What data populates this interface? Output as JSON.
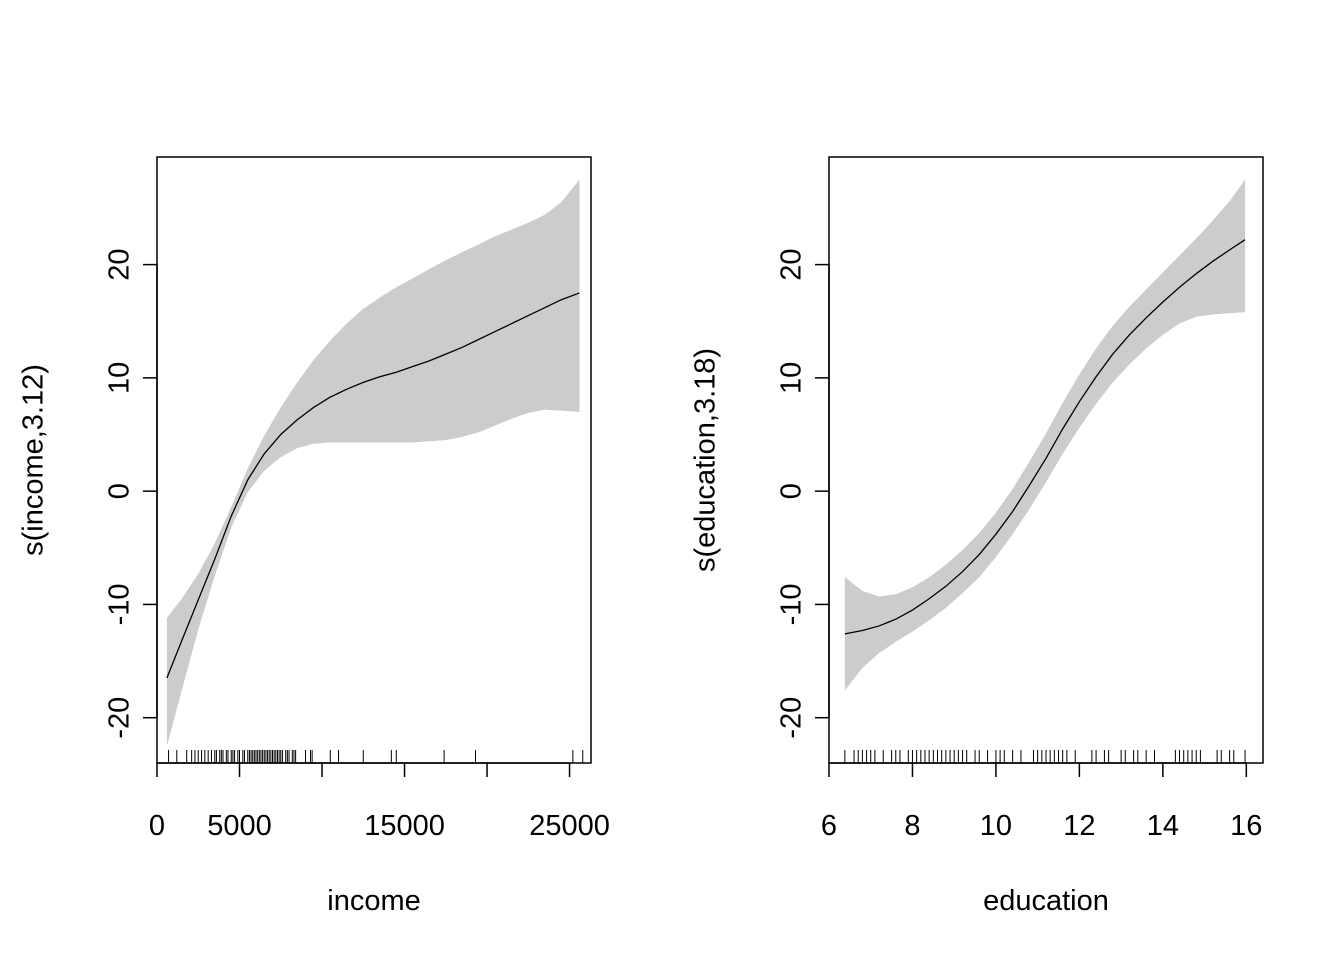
{
  "chart_data": [
    {
      "type": "line",
      "xlabel": "income",
      "ylabel": "s(income,3.12)",
      "xlim": [
        0,
        26300
      ],
      "ylim": [
        -24,
        29.5
      ],
      "xticks": [
        0,
        5000,
        10000,
        15000,
        20000,
        25000
      ],
      "xtick_labels": [
        "0",
        "5000",
        "",
        "15000",
        "",
        "25000"
      ],
      "yticks": [
        -20,
        -10,
        0,
        10,
        20
      ],
      "ytick_labels": [
        "-20",
        "-10",
        "0",
        "10",
        "20"
      ],
      "band_color": "#cccccc",
      "line_color": "#000000",
      "fit": {
        "x": [
          600,
          1500,
          2500,
          3500,
          4500,
          5500,
          6500,
          7500,
          8500,
          9500,
          10500,
          11500,
          12500,
          13500,
          14500,
          15500,
          16500,
          17500,
          18500,
          19500,
          20500,
          21500,
          22500,
          23500,
          24500,
          25600
        ],
        "y": [
          -16.5,
          -13.2,
          -9.6,
          -6.0,
          -2.2,
          1.0,
          3.3,
          5.0,
          6.3,
          7.4,
          8.3,
          9.0,
          9.6,
          10.1,
          10.5,
          11.0,
          11.5,
          12.1,
          12.7,
          13.4,
          14.1,
          14.8,
          15.5,
          16.2,
          16.9,
          17.5
        ],
        "upper": [
          -11.2,
          -9.5,
          -7.3,
          -4.6,
          -1.4,
          2.0,
          4.9,
          7.4,
          9.6,
          11.6,
          13.3,
          14.8,
          16.1,
          17.1,
          18.0,
          18.8,
          19.6,
          20.4,
          21.1,
          21.8,
          22.5,
          23.1,
          23.7,
          24.4,
          25.5,
          27.5
        ],
        "lower": [
          -22.5,
          -17.6,
          -12.2,
          -7.5,
          -3.2,
          -0.1,
          1.8,
          3.0,
          3.8,
          4.2,
          4.3,
          4.3,
          4.3,
          4.3,
          4.3,
          4.3,
          4.4,
          4.5,
          4.8,
          5.2,
          5.8,
          6.4,
          6.9,
          7.2,
          7.1,
          7.0
        ]
      },
      "rug": [
        700,
        1200,
        1800,
        2100,
        2300,
        2500,
        2700,
        2900,
        3100,
        3300,
        3500,
        3600,
        3800,
        3900,
        4000,
        4200,
        4300,
        4500,
        4600,
        4700,
        4900,
        5000,
        5200,
        5300,
        5500,
        5600,
        5700,
        5800,
        5900,
        6000,
        6100,
        6200,
        6300,
        6400,
        6500,
        6600,
        6700,
        6800,
        6900,
        7000,
        7100,
        7200,
        7300,
        7400,
        7500,
        7600,
        7800,
        7900,
        8000,
        8200,
        8300,
        8400,
        9000,
        9300,
        9400,
        10500,
        11000,
        12500,
        14200,
        14500,
        17400,
        19300,
        25200,
        25800
      ]
    },
    {
      "type": "line",
      "xlabel": "education",
      "ylabel": "s(education,3.18)",
      "xlim": [
        6,
        16.4
      ],
      "ylim": [
        -24,
        29.5
      ],
      "xticks": [
        6,
        8,
        10,
        12,
        14,
        16
      ],
      "xtick_labels": [
        "6",
        "8",
        "10",
        "12",
        "14",
        "16"
      ],
      "yticks": [
        -20,
        -10,
        0,
        10,
        20
      ],
      "ytick_labels": [
        "-20",
        "-10",
        "0",
        "10",
        "20"
      ],
      "band_color": "#cccccc",
      "line_color": "#000000",
      "fit": {
        "x": [
          6.38,
          6.8,
          7.2,
          7.6,
          8.0,
          8.4,
          8.8,
          9.2,
          9.6,
          10.0,
          10.4,
          10.8,
          11.2,
          11.6,
          12.0,
          12.4,
          12.8,
          13.2,
          13.6,
          14.0,
          14.4,
          14.8,
          15.2,
          15.6,
          15.97
        ],
        "y": [
          -12.6,
          -12.3,
          -11.9,
          -11.3,
          -10.5,
          -9.5,
          -8.4,
          -7.1,
          -5.6,
          -3.8,
          -1.8,
          0.5,
          2.9,
          5.5,
          7.9,
          10.1,
          12.1,
          13.8,
          15.3,
          16.7,
          18.0,
          19.2,
          20.3,
          21.3,
          22.2
        ],
        "upper": [
          -7.6,
          -8.8,
          -9.3,
          -9.1,
          -8.5,
          -7.6,
          -6.5,
          -5.2,
          -3.7,
          -1.9,
          0.2,
          2.6,
          5.1,
          7.8,
          10.3,
          12.6,
          14.6,
          16.3,
          17.8,
          19.3,
          20.8,
          22.3,
          23.9,
          25.6,
          27.5
        ],
        "lower": [
          -17.6,
          -15.6,
          -14.3,
          -13.3,
          -12.4,
          -11.4,
          -10.3,
          -9.0,
          -7.6,
          -5.8,
          -3.8,
          -1.6,
          0.8,
          3.3,
          5.6,
          7.7,
          9.6,
          11.2,
          12.6,
          13.8,
          14.8,
          15.4,
          15.6,
          15.7,
          15.8
        ]
      },
      "rug": [
        6.38,
        6.6,
        6.7,
        6.8,
        6.9,
        7.0,
        7.1,
        7.3,
        7.5,
        7.6,
        7.7,
        7.9,
        8.0,
        8.1,
        8.2,
        8.3,
        8.4,
        8.5,
        8.6,
        8.7,
        8.8,
        8.9,
        9.0,
        9.1,
        9.2,
        9.3,
        9.5,
        9.6,
        9.8,
        10.0,
        10.1,
        10.2,
        10.4,
        10.6,
        10.9,
        11.0,
        11.1,
        11.2,
        11.3,
        11.4,
        11.5,
        11.6,
        11.7,
        11.9,
        12.3,
        12.4,
        12.6,
        12.7,
        13.0,
        13.1,
        13.3,
        13.4,
        13.6,
        13.8,
        14.3,
        14.4,
        14.5,
        14.6,
        14.7,
        14.8,
        14.9,
        15.3,
        15.4,
        15.6,
        15.7,
        15.97
      ]
    }
  ]
}
